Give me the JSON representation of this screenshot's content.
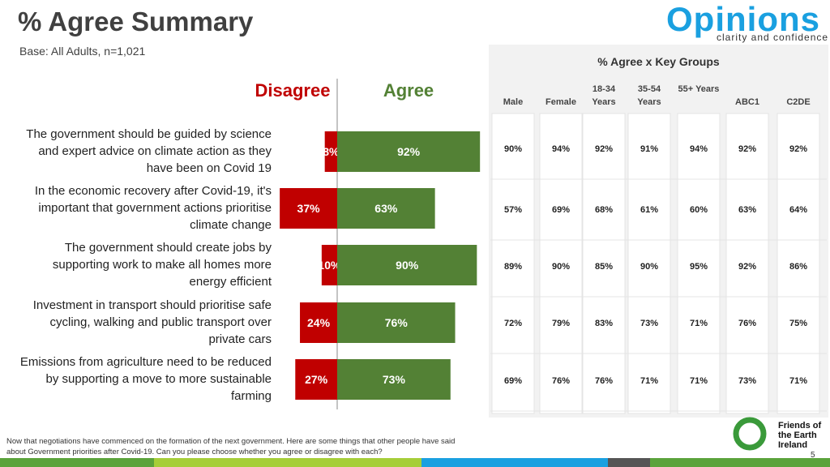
{
  "header": {
    "title": "% Agree Summary",
    "subtitle": "Base: All Adults, n=1,021",
    "logo": "Opinions",
    "tagline": "clarity and confidence"
  },
  "chart_data": {
    "type": "bar",
    "orientation": "horizontal",
    "diverging": true,
    "categories": [
      "The government should be guided by science and expert advice on climate action as they have been on Covid 19",
      "In the economic recovery after Covid-19, it's important that government actions prioritise climate change",
      "The government should create jobs by supporting work to make all homes more energy efficient",
      "Investment in transport should prioritise safe cycling, walking and public transport over private cars",
      "Emissions from agriculture need to be reduced by supporting a move to more sustainable farming"
    ],
    "series": [
      {
        "name": "Disagree",
        "color": "#c00000",
        "values": [
          8,
          37,
          10,
          24,
          27
        ],
        "value_labels": [
          "8%",
          "37%",
          "10%",
          "24%",
          "27%"
        ]
      },
      {
        "name": "Agree",
        "color": "#538135",
        "values": [
          92,
          63,
          90,
          76,
          73
        ],
        "value_labels": [
          "92%",
          "63%",
          "90%",
          "76%",
          "73%"
        ]
      }
    ]
  },
  "table": {
    "title": "% Agree x Key Groups",
    "columns": [
      "Male",
      "Female",
      "18-34 Years",
      "35-54 Years",
      "55+ Years",
      "ABC1",
      "C2DE"
    ],
    "rows": [
      [
        "90%",
        "94%",
        "92%",
        "91%",
        "94%",
        "92%",
        "92%"
      ],
      [
        "57%",
        "69%",
        "68%",
        "61%",
        "60%",
        "63%",
        "64%"
      ],
      [
        "89%",
        "90%",
        "85%",
        "90%",
        "95%",
        "92%",
        "86%"
      ],
      [
        "72%",
        "79%",
        "83%",
        "73%",
        "71%",
        "76%",
        "75%"
      ],
      [
        "69%",
        "76%",
        "76%",
        "71%",
        "71%",
        "73%",
        "71%"
      ]
    ]
  },
  "footer": {
    "note": "Now that negotiations have commenced on the formation of the next government.  Here are some things that other people have said about Government priorities after Covid-19.  Can you please choose whether you agree or disagree with each?",
    "organisation": "Friends of the Earth Ireland",
    "page": "5"
  }
}
